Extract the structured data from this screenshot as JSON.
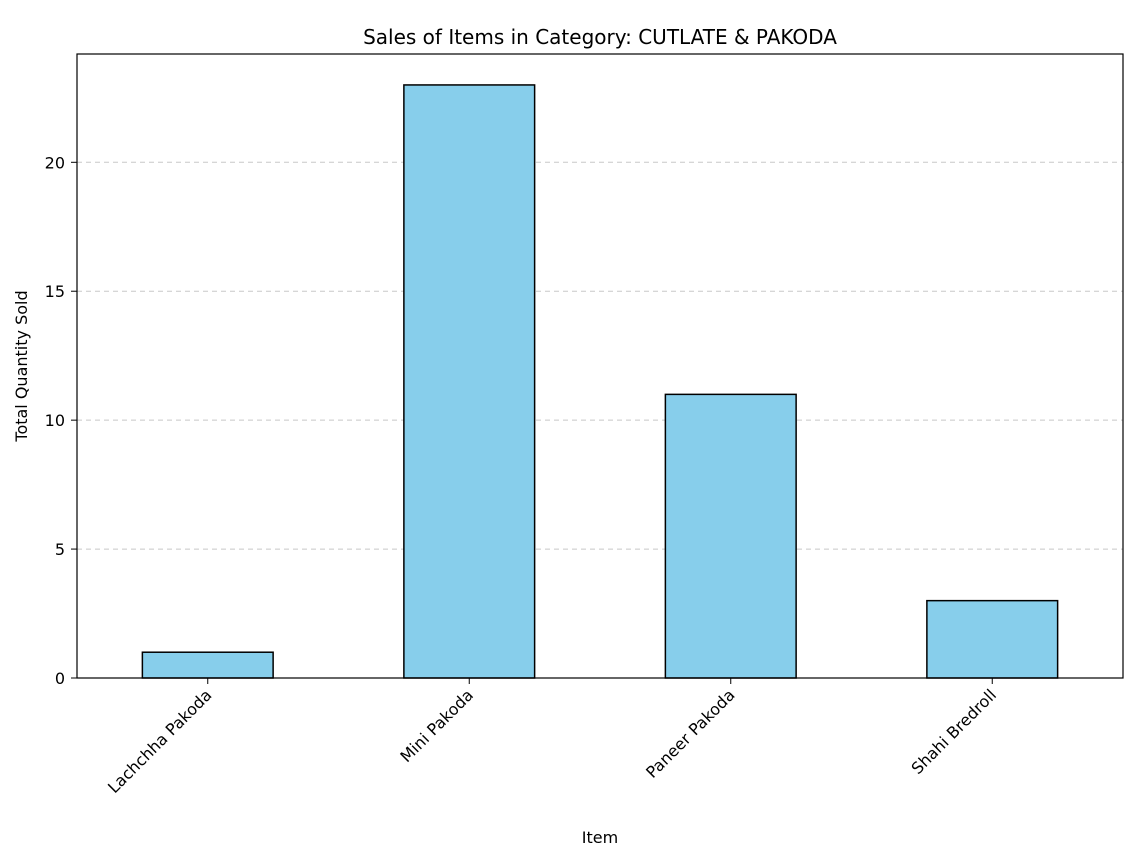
{
  "chart_data": {
    "type": "bar",
    "title": "Sales of Items in Category: CUTLATE & PAKODA",
    "xlabel": "Item",
    "ylabel": "Total Quantity Sold",
    "categories": [
      "Lachchha Pakoda",
      "Mini Pakoda",
      "Paneer Pakoda",
      "Shahi Bredroll"
    ],
    "values": [
      1,
      23,
      11,
      3
    ],
    "ylim": [
      0,
      24.2
    ],
    "yticks": [
      0,
      5,
      10,
      15,
      20
    ],
    "grid": "y-dashed",
    "legend": "none",
    "bar_color": "#87CEEB",
    "bar_edge_color": "#000000",
    "tick_label_rotation": 45
  }
}
